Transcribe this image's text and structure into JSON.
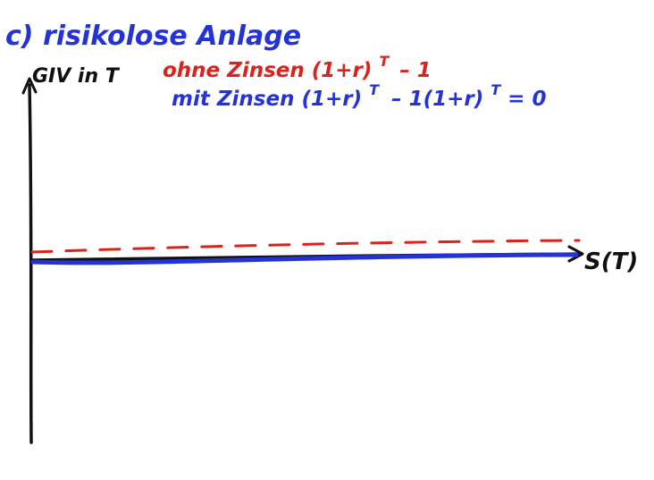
{
  "heading": "c) risikolose Anlage",
  "y_axis_label": "GIV in T",
  "x_axis_label": "S(T)",
  "legend": {
    "red_line": "ohne Zinsen (1+r)",
    "red_exponent": "T",
    "red_tail": "– 1",
    "blue_line": "mit Zinsen (1+r)",
    "blue_exponent_1": "T",
    "blue_mid": "– 1(1+r)",
    "blue_exponent_2": "T",
    "blue_tail": "= 0"
  },
  "colors": {
    "red": "#d9231c",
    "blue": "#2433d6",
    "ink": "#111111"
  },
  "chart_data": {
    "type": "line",
    "xlabel": "S(T)",
    "ylabel": "GIV in T",
    "series": [
      {
        "name": "ohne Zinsen (1+r)^T – 1",
        "style": "dashed",
        "color": "#d9231c"
      },
      {
        "name": "mit Zinsen (1+r)^T – 1(1+r)^T = 0",
        "style": "solid",
        "color": "#2433d6"
      }
    ]
  }
}
